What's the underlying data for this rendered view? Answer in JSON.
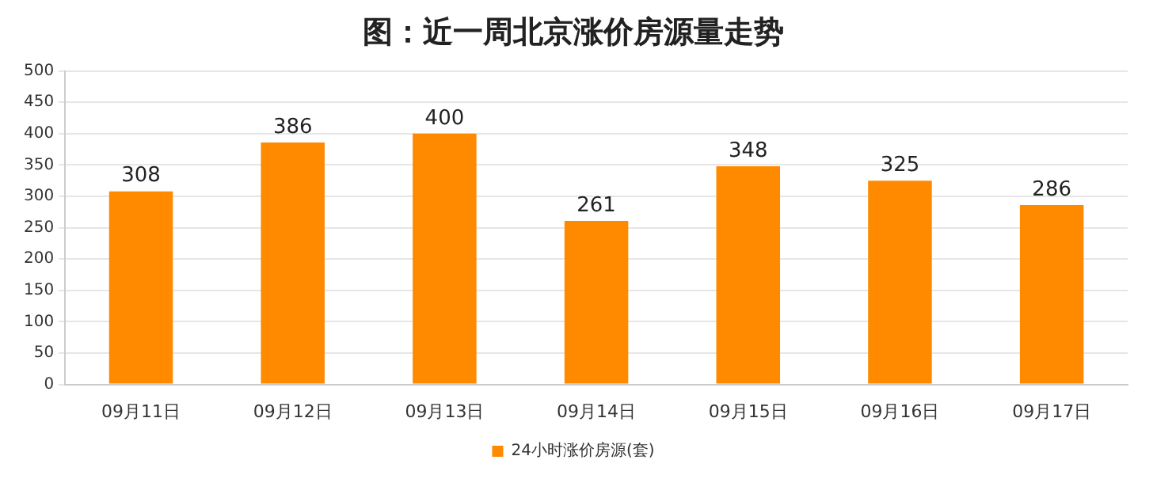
{
  "chart_data": {
    "type": "bar",
    "title": "图：近一周北京涨价房源量走势",
    "categories": [
      "09月11日",
      "09月12日",
      "09月13日",
      "09月14日",
      "09月15日",
      "09月16日",
      "09月17日"
    ],
    "series": [
      {
        "name": "24小时涨价房源(套)",
        "color": "#ff8a00",
        "values": [
          308,
          386,
          400,
          261,
          348,
          325,
          286
        ]
      }
    ],
    "ylim": [
      0,
      500
    ],
    "yticks": [
      0,
      50,
      100,
      150,
      200,
      250,
      300,
      350,
      400,
      450,
      500
    ],
    "grid": "y",
    "legend": "bottom",
    "data_labels": true
  }
}
